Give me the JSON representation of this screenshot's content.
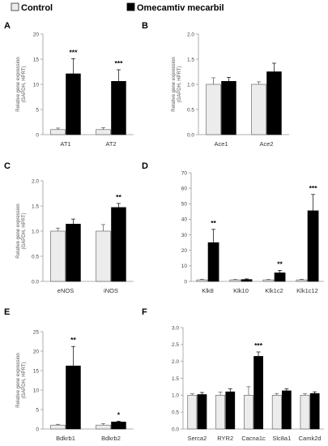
{
  "legend": [
    {
      "label": "Control",
      "color": "#ececec"
    },
    {
      "label": "Omecamtiv mecarbil",
      "color": "#000000"
    }
  ],
  "colors": {
    "control": "#ececec",
    "treated": "#000000",
    "stroke": "#555555"
  },
  "chart_data": [
    {
      "panel": "A",
      "type": "bar",
      "ylabel": [
        "Relative gene expression",
        "(GAPDH, HPRT)"
      ],
      "ylim": [
        0,
        20
      ],
      "yticks": [
        0,
        5,
        10,
        15,
        20
      ],
      "categories": [
        "AT1",
        "AT2"
      ],
      "series": [
        {
          "name": "Control",
          "values": [
            1.0,
            1.0
          ],
          "errors": [
            0.3,
            0.4
          ]
        },
        {
          "name": "Omecamtiv mecarbil",
          "values": [
            12.1,
            10.6
          ],
          "errors": [
            3.0,
            2.3
          ]
        }
      ],
      "significance": [
        {
          "category": 0,
          "label": "***"
        },
        {
          "category": 1,
          "label": "***"
        }
      ]
    },
    {
      "panel": "B",
      "type": "bar",
      "ylabel": [
        "Relative gene expression",
        "(GAPDH, HPRT)"
      ],
      "ylim": [
        0,
        2.0
      ],
      "yticks": [
        "0.0",
        "0.5",
        "1.0",
        "1.5",
        "2.0"
      ],
      "categories": [
        "Ace1",
        "Ace2"
      ],
      "series": [
        {
          "name": "Control",
          "values": [
            1.0,
            1.0
          ],
          "errors": [
            0.13,
            0.05
          ]
        },
        {
          "name": "Omecamtiv mecarbil",
          "values": [
            1.06,
            1.25
          ],
          "errors": [
            0.08,
            0.17
          ]
        }
      ],
      "significance": []
    },
    {
      "panel": "C",
      "type": "bar",
      "ylabel": [
        "Relative gene expression",
        "(GAPDH, HPRT)"
      ],
      "ylim": [
        0,
        2.0
      ],
      "yticks": [
        "0.0",
        "0.5",
        "1.0",
        "1.5",
        "2.0"
      ],
      "categories": [
        "eNOS",
        "iNOS"
      ],
      "series": [
        {
          "name": "Control",
          "values": [
            1.0,
            1.0
          ],
          "errors": [
            0.06,
            0.13
          ]
        },
        {
          "name": "Omecamtiv mecarbil",
          "values": [
            1.14,
            1.47
          ],
          "errors": [
            0.1,
            0.08
          ]
        }
      ],
      "significance": [
        {
          "category": 1,
          "label": "**"
        }
      ]
    },
    {
      "panel": "D",
      "type": "bar",
      "ylabel": [],
      "ylim": [
        0,
        70
      ],
      "yticks": [
        0,
        10,
        20,
        30,
        40,
        50,
        60,
        70
      ],
      "categories": [
        "Klk8",
        "Klk10",
        "Klk1c2",
        "Klk1c12"
      ],
      "series": [
        {
          "name": "Control",
          "values": [
            1.0,
            1.0,
            1.0,
            1.0
          ],
          "errors": [
            0.4,
            0.3,
            0.3,
            0.4
          ]
        },
        {
          "name": "Omecamtiv mecarbil",
          "values": [
            25.0,
            1.2,
            5.5,
            45.5
          ],
          "errors": [
            8.5,
            0.4,
            1.6,
            10.5
          ]
        }
      ],
      "significance": [
        {
          "category": 0,
          "label": "**"
        },
        {
          "category": 2,
          "label": "**"
        },
        {
          "category": 3,
          "label": "***"
        }
      ]
    },
    {
      "panel": "E",
      "type": "bar",
      "ylabel": [
        "Relative gene expression",
        "(GAPDH, HPRT)"
      ],
      "ylim": [
        0,
        25
      ],
      "yticks": [
        0,
        5,
        10,
        15,
        20,
        25
      ],
      "categories": [
        "Bdkrb1",
        "Bdkrb2"
      ],
      "series": [
        {
          "name": "Control",
          "values": [
            1.0,
            1.0
          ],
          "errors": [
            0.2,
            0.4
          ]
        },
        {
          "name": "Omecamtiv mecarbil",
          "values": [
            16.2,
            1.8
          ],
          "errors": [
            5.0,
            0.2
          ]
        }
      ],
      "significance": [
        {
          "category": 0,
          "label": "**"
        },
        {
          "category": 1,
          "label": "*"
        }
      ]
    },
    {
      "panel": "F",
      "type": "bar",
      "ylabel": [],
      "ylim": [
        0,
        3.0
      ],
      "yticks": [
        "0.0",
        "0.5",
        "1.0",
        "1.5",
        "2.0",
        "2.5",
        "3.0"
      ],
      "categories": [
        "Serca2",
        "RYR2",
        "Cacna1c",
        "Slc8a1",
        "Camk2d"
      ],
      "series": [
        {
          "name": "Control",
          "values": [
            1.0,
            1.0,
            1.0,
            1.0,
            1.0
          ],
          "errors": [
            0.04,
            0.09,
            0.25,
            0.05,
            0.04
          ]
        },
        {
          "name": "Omecamtiv mecarbil",
          "values": [
            1.02,
            1.1,
            2.15,
            1.13,
            1.05
          ],
          "errors": [
            0.06,
            0.09,
            0.13,
            0.06,
            0.05
          ]
        }
      ],
      "significance": [
        {
          "category": 2,
          "label": "***"
        }
      ]
    }
  ]
}
